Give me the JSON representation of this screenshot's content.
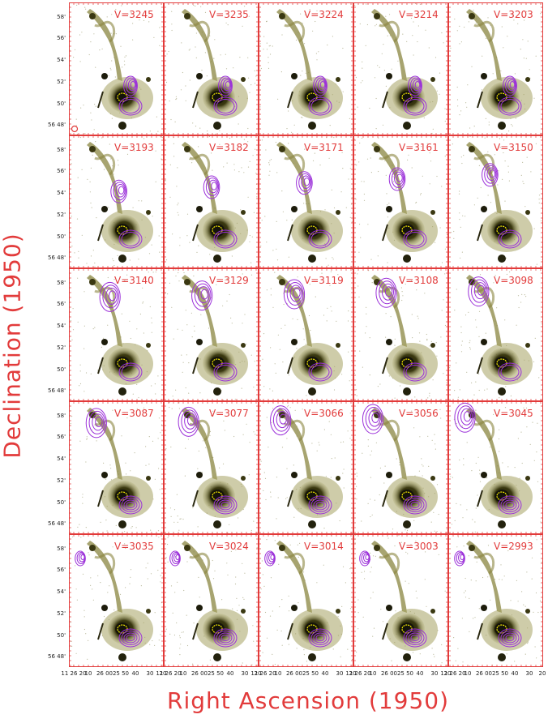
{
  "figure": {
    "ylabel": "Declination (1950)",
    "xlabel": "Right Ascension (1950)",
    "colors": {
      "axis": "#e23b3b",
      "contour": "#9b30d9",
      "inner_contour": "#f2e600",
      "galaxy": "#4d4a12"
    }
  },
  "chart_data": {
    "type": "channel map grid",
    "title": "",
    "xlabel": "Right Ascension (1950)",
    "ylabel": "Declination (1950)",
    "grid": "5 columns x 5 rows",
    "x_tick_labels": [
      "11 26 20",
      "10",
      "26 00",
      "25 50",
      "40",
      "30",
      "20"
    ],
    "y_tick_labels": [
      "58'",
      "56'",
      "54'",
      "52'",
      "50'",
      "56 48'"
    ],
    "channels": [
      {
        "label": "V=3245",
        "velocity": 3245,
        "row": 1,
        "col": 1
      },
      {
        "label": "V=3235",
        "velocity": 3235,
        "row": 1,
        "col": 2
      },
      {
        "label": "V=3224",
        "velocity": 3224,
        "row": 1,
        "col": 3
      },
      {
        "label": "V=3214",
        "velocity": 3214,
        "row": 1,
        "col": 4
      },
      {
        "label": "V=3203",
        "velocity": 3203,
        "row": 1,
        "col": 5
      },
      {
        "label": "V=3193",
        "velocity": 3193,
        "row": 2,
        "col": 1
      },
      {
        "label": "V=3182",
        "velocity": 3182,
        "row": 2,
        "col": 2
      },
      {
        "label": "V=3171",
        "velocity": 3171,
        "row": 2,
        "col": 3
      },
      {
        "label": "V=3161",
        "velocity": 3161,
        "row": 2,
        "col": 4
      },
      {
        "label": "V=3150",
        "velocity": 3150,
        "row": 2,
        "col": 5
      },
      {
        "label": "V=3140",
        "velocity": 3140,
        "row": 3,
        "col": 1
      },
      {
        "label": "V=3129",
        "velocity": 3129,
        "row": 3,
        "col": 2
      },
      {
        "label": "V=3119",
        "velocity": 3119,
        "row": 3,
        "col": 3
      },
      {
        "label": "V=3108",
        "velocity": 3108,
        "row": 3,
        "col": 4
      },
      {
        "label": "V=3098",
        "velocity": 3098,
        "row": 3,
        "col": 5
      },
      {
        "label": "V=3087",
        "velocity": 3087,
        "row": 4,
        "col": 1
      },
      {
        "label": "V=3077",
        "velocity": 3077,
        "row": 4,
        "col": 2
      },
      {
        "label": "V=3066",
        "velocity": 3066,
        "row": 4,
        "col": 3
      },
      {
        "label": "V=3056",
        "velocity": 3056,
        "row": 4,
        "col": 4
      },
      {
        "label": "V=3045",
        "velocity": 3045,
        "row": 4,
        "col": 5
      },
      {
        "label": "V=3035",
        "velocity": 3035,
        "row": 5,
        "col": 1
      },
      {
        "label": "V=3024",
        "velocity": 3024,
        "row": 5,
        "col": 2
      },
      {
        "label": "V=3014",
        "velocity": 3014,
        "row": 5,
        "col": 3
      },
      {
        "label": "V=3003",
        "velocity": 3003,
        "row": 5,
        "col": 4
      },
      {
        "label": "V=2993",
        "velocity": 2993,
        "row": 5,
        "col": 5
      }
    ]
  }
}
